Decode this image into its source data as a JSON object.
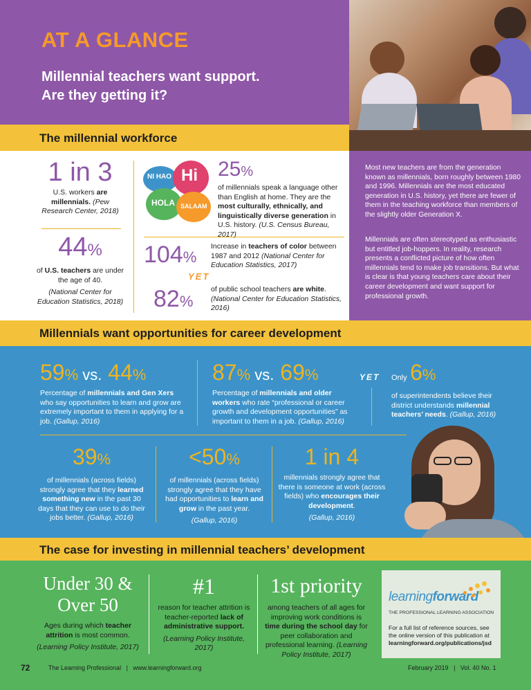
{
  "header": {
    "title": "AT A GLANCE",
    "subtitle_line1": "Millennial teachers want support.",
    "subtitle_line2": "Are they getting it?"
  },
  "section1": {
    "heading": "The millennial workforce",
    "stat_1in3": {
      "num": "1 in 3",
      "text_a": "U.S. workers ",
      "text_b": "are millennials.",
      "src": "(Pew Research Center, 2018)"
    },
    "stat_44": {
      "num": "44",
      "pct": "%",
      "text_a": "of ",
      "text_b": "U.S. teachers",
      "text_c": " are under the age of 40.",
      "src": "(National Center for Education Statistics, 2018)"
    },
    "bubbles": [
      "NI HAO",
      "Hi",
      "HOLA",
      "SALAAM"
    ],
    "stat_25": {
      "num": "25",
      "pct": "%",
      "text_a": "of millennials speak a language other than English at home. They are the ",
      "text_b": "most culturally, ethnically, and linguistically diverse generation",
      "text_c": " in U.S. history. ",
      "src": "(U.S. Census Bureau, 2017)"
    },
    "stat_104": {
      "num": "104",
      "pct": "%",
      "text_a": "Increase in ",
      "text_b": "teachers of color",
      "text_c": " between 1987 and 2012 ",
      "src": "(National Center for Education Statistics, 2017)"
    },
    "yet": "YET",
    "stat_82": {
      "num": "82",
      "pct": "%",
      "text_a": "of public school teachers ",
      "text_b": "are white",
      "text_c": ". ",
      "src": "(National Center for Education Statistics, 2016)"
    },
    "side_p1": "Most new teachers are from the generation known as millennials, born roughly between 1980 and 1996. Millennials are the most educated generation in U.S. history, yet there are fewer of them in the teaching workforce than members of the slightly older Generation X.",
    "side_p2": "Millennials are often stereotyped as enthusiastic but entitled job-hoppers. In reality, research presents a conflicted picture of how often millennials tend to make job transitions. But what is clear is that young teachers care about their career development and want support for professional growth."
  },
  "section2": {
    "heading": "Millennials want opportunities for career development",
    "s59": {
      "a": "59",
      "pct": "%",
      "vs": " vs.",
      "b": "44",
      "text_a": "Percentage of ",
      "text_b": "millennials and Gen Xers",
      "text_c": " who say opportunities to learn and grow are extremely important to them in applying for a job. ",
      "src": "(Gallup, 2016)"
    },
    "s87": {
      "a": "87",
      "pct": "%",
      "vs": " vs.",
      "b": "69",
      "text_a": "Percentage of ",
      "text_b": "millennials and older workers",
      "text_c": " who rate “professional or career growth and development opportunities” as important to them in a job. ",
      "src": "(Gallup, 2016)"
    },
    "yet": "YET",
    "s6": {
      "only": "Only",
      "num": "6",
      "pct": "%",
      "text_a": "of superintendents believe their district understands ",
      "text_b": "millennial teachers’ needs",
      "text_c": ". ",
      "src": "(Gallup, 2016)"
    },
    "s39": {
      "num": "39",
      "pct": "%",
      "text_a": "of millennials (across fields) strongly agree that they ",
      "text_b": "learned something new",
      "text_c": " in the past 30 days that they can use to do their jobs better. ",
      "src": "(Gallup, 2016)"
    },
    "s50": {
      "num": "<50",
      "pct": "%",
      "text_a": "of millennials (across fields) strongly agree that they have had opportunities to ",
      "text_b": "learn and grow",
      "text_c": " in the past year.",
      "src": "(Gallup, 2016)"
    },
    "s1in4": {
      "num": "1 in 4",
      "text_a": "millennials strongly agree that there is someone at work (across fields) who ",
      "text_b": "encourages their development",
      "text_c": ".",
      "src": "(Gallup, 2016)"
    }
  },
  "section3": {
    "heading": "The case for investing in millennial teachers’ development",
    "c1": {
      "num_line1": "Under 30 &",
      "num_line2": "Over 50",
      "text_a": "Ages during which ",
      "text_b": "teacher attrition",
      "text_c": " is most common.",
      "src": "(Learning Policy Institute, 2017)"
    },
    "c2": {
      "num": "#1",
      "text_a": "reason for teacher attrition is teacher-reported ",
      "text_b": "lack of administrative support.",
      "src": "(Learning Policy Institute, 2017)"
    },
    "c3": {
      "num": "1st priority",
      "text_a": "among teachers of all ages for improving work conditions is ",
      "text_b": "time during the school day",
      "text_c": " for peer collaboration and professional learning. ",
      "src": "(Learning Policy Institute, 2017)"
    },
    "lf": {
      "logo_a": "learning",
      "logo_b": "forward",
      "tagline": "THE PROFESSIONAL LEARNING ASSOCIATION",
      "note": "For a full list of reference sources, see the online version of this publication at ",
      "url": "learningforward.org/publications/jsd"
    }
  },
  "footer": {
    "page": "72",
    "pub": "The Learning Professional",
    "sep": "|",
    "site": "www.learningforward.org",
    "date": "February 2019",
    "vol": "Vol. 40 No. 1"
  },
  "colors": {
    "purple": "#8e57a7",
    "gold": "#ecb423",
    "yellow": "#f3c23a",
    "blue": "#3d93c9",
    "green": "#56b45c",
    "orange": "#f59a2b"
  }
}
